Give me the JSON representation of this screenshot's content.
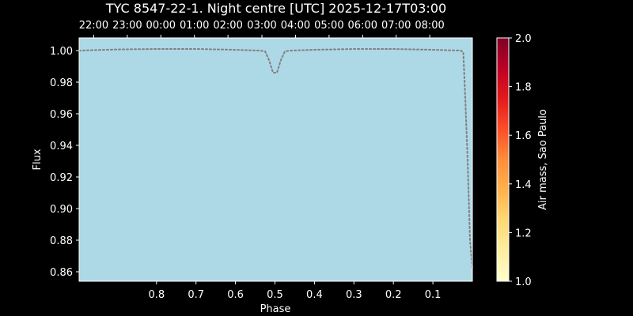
{
  "chart_data": {
    "type": "line",
    "title": "TYC 8547-22-1. Night centre [UTC] 2025-12-17T03:00",
    "xlabel": "Phase",
    "ylabel": "Flux",
    "xlim": [
      0.996,
      0.0
    ],
    "ylim": [
      0.854,
      1.008
    ],
    "x_ticks": [
      "0.8",
      "0.7",
      "0.6",
      "0.5",
      "0.4",
      "0.3",
      "0.2",
      "0.1"
    ],
    "x_tick_values": [
      0.8,
      0.7,
      0.6,
      0.5,
      0.4,
      0.3,
      0.2,
      0.1
    ],
    "y_ticks": [
      "1.00",
      "0.98",
      "0.96",
      "0.94",
      "0.92",
      "0.90",
      "0.88",
      "0.86"
    ],
    "y_tick_values": [
      1.0,
      0.98,
      0.96,
      0.94,
      0.92,
      0.9,
      0.88,
      0.86
    ],
    "top_axis": {
      "labels": [
        "22:00",
        "23:00",
        "00:00",
        "01:00",
        "02:00",
        "03:00",
        "04:00",
        "05:00",
        "06:00",
        "07:00",
        "08:00"
      ],
      "phase_positions": [
        0.959,
        0.874,
        0.789,
        0.704,
        0.619,
        0.533,
        0.448,
        0.363,
        0.278,
        0.193,
        0.108
      ]
    },
    "series": [
      {
        "x": [
          0.996,
          0.9,
          0.8,
          0.7,
          0.6,
          0.54,
          0.525,
          0.515,
          0.505,
          0.495,
          0.485,
          0.475,
          0.46,
          0.4,
          0.3,
          0.2,
          0.1,
          0.03,
          0.023,
          0.018,
          0.012,
          0.006,
          0.0
        ],
        "y": [
          1.0,
          1.0007,
          1.001,
          1.001,
          1.0005,
          1.0,
          0.9995,
          0.994,
          0.986,
          0.986,
          0.994,
          0.9995,
          1.0,
          1.0005,
          1.001,
          1.001,
          1.0005,
          1.0,
          0.999,
          0.97,
          0.93,
          0.88,
          0.862
        ],
        "color": "#808080",
        "style": "dotted"
      }
    ],
    "plot_background": "#add8e6",
    "colorbar": {
      "label": "Air mass, Sao Paulo",
      "range": [
        1.0,
        2.0
      ],
      "ticks": [
        "1.0",
        "1.2",
        "1.4",
        "1.6",
        "1.8",
        "2.0"
      ],
      "tick_values": [
        1.0,
        1.2,
        1.4,
        1.6,
        1.8,
        2.0
      ],
      "colormap": [
        "#ffffcc",
        "#ffeda0",
        "#fed976",
        "#feb24c",
        "#fd8d3c",
        "#fc4e2a",
        "#e31a1c",
        "#bd0026",
        "#800026"
      ]
    },
    "grid": false
  }
}
